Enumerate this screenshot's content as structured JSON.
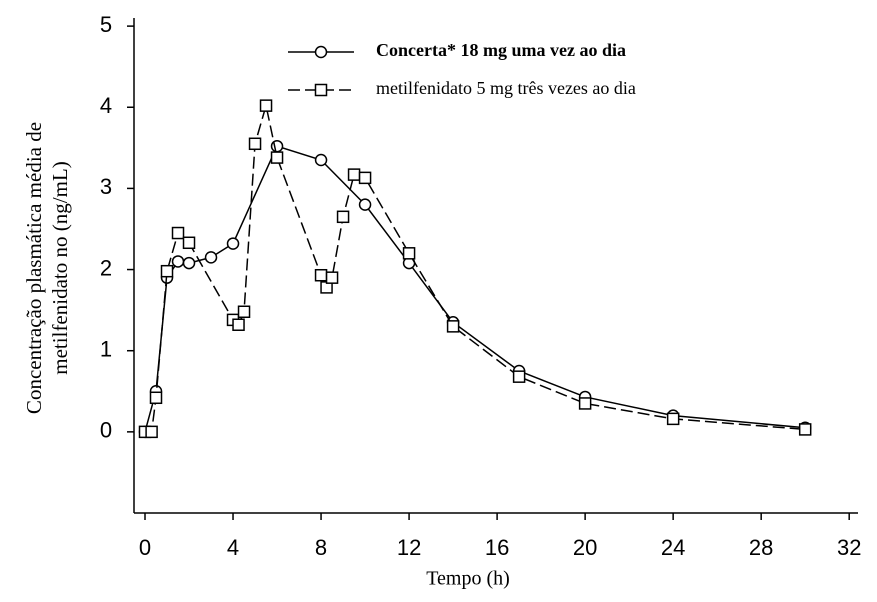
{
  "chart_data": {
    "type": "line",
    "x_label": "Tempo (h)",
    "y_label": [
      "Concentração plasmática média de",
      "metilfenidato no (ng/mL)"
    ],
    "xlim": [
      -0.5,
      32.4
    ],
    "ylim": [
      -1,
      5.1
    ],
    "xticks": [
      0,
      4,
      8,
      12,
      16,
      20,
      24,
      28,
      32
    ],
    "yticks": [
      0,
      1,
      2,
      3,
      4,
      5
    ],
    "series": [
      {
        "name": "Concerta* 18 mg uma vez ao dia",
        "color": "#000000",
        "marker": "circle",
        "dashed": false,
        "x": [
          0,
          0.5,
          1,
          1.5,
          2,
          3,
          4,
          6,
          8,
          10,
          12,
          14,
          17,
          20,
          24,
          30
        ],
        "values": [
          0,
          0.5,
          1.9,
          2.1,
          2.08,
          2.15,
          2.32,
          3.52,
          3.35,
          2.8,
          2.08,
          1.35,
          0.75,
          0.43,
          0.2,
          0.05
        ]
      },
      {
        "name": "metilfenidato 5 mg três vezes ao dia",
        "color": "#000000",
        "marker": "square",
        "dashed": true,
        "x": [
          0,
          0.3,
          0.5,
          1,
          1.5,
          2,
          4,
          4.25,
          4.5,
          5,
          5.5,
          6,
          8,
          8.25,
          8.5,
          9,
          9.5,
          10,
          12,
          14,
          17,
          20,
          24,
          30
        ],
        "values": [
          0,
          0,
          0.42,
          1.98,
          2.45,
          2.33,
          1.38,
          1.32,
          1.48,
          3.55,
          4.02,
          3.38,
          1.93,
          1.78,
          1.9,
          2.65,
          3.17,
          3.13,
          2.2,
          1.3,
          0.68,
          0.35,
          0.16,
          0.03
        ]
      }
    ]
  }
}
